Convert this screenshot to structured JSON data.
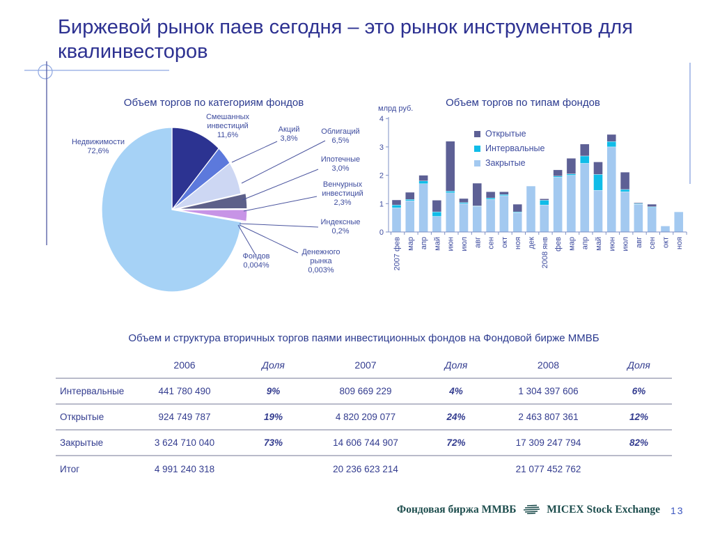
{
  "slide": {
    "title": "Биржевой рынок паев сегодня – это рынок инструментов для квалинвесторов",
    "page_number": "13",
    "footer": {
      "brand_ru": "Фондовая биржа ММВБ",
      "brand_en": "MICEX Stock Exchange"
    }
  },
  "chart_data": [
    {
      "type": "pie",
      "title": "Объем торгов по категориям фондов",
      "legend_position": "callout-labels",
      "slices": [
        {
          "label": "Смешанных инвестиций",
          "pct_label": "11,6%",
          "value": 11.6,
          "color": "#2c3391",
          "display": "Смешанных\nинвестиций\n11,6%"
        },
        {
          "label": "Акций",
          "pct_label": "3,8%",
          "value": 3.8,
          "color": "#5c79dc",
          "display": "Акций\n3,8%"
        },
        {
          "label": "Облигаций",
          "pct_label": "6,5%",
          "value": 6.5,
          "color": "#cdd7f3",
          "display": "Облигаций\n6,5%"
        },
        {
          "label": "Ипотечные",
          "pct_label": "3,0%",
          "value": 3.0,
          "color": "#5d6089",
          "explode": true,
          "display": "Ипотечные\n3,0%"
        },
        {
          "label": "Венчурных инвестиций",
          "pct_label": "2,3%",
          "value": 2.3,
          "color": "#c794e6",
          "explode": true,
          "display": "Венчурных\nинвестиций\n2,3%"
        },
        {
          "label": "Индексные",
          "pct_label": "0,2%",
          "value": 0.2,
          "color": "#e38ad8",
          "explode": true,
          "display": "Индексные\n0,2%"
        },
        {
          "label": "Фондов",
          "pct_label": "0,004%",
          "value": 0.004,
          "color": "#eef1fa",
          "display": "Фондов\n0,004%"
        },
        {
          "label": "Денежного рынка",
          "pct_label": "0,003%",
          "value": 0.003,
          "color": "#eef1fa",
          "display": "Денежного\nрынка\n0,003%"
        },
        {
          "label": "Недвижимости",
          "pct_label": "72,6%",
          "value": 72.6,
          "color": "#a6d2f6",
          "display": "Недвижимости\n72,6%"
        }
      ]
    },
    {
      "type": "bar",
      "stacked": true,
      "title": "Объем торгов по типам фондов",
      "ylabel": "млрд руб.",
      "ylim": [
        0,
        4
      ],
      "yticks": [
        0,
        1,
        2,
        3,
        4
      ],
      "grid": false,
      "legend_position": "top-inside",
      "categories": [
        "2007 фев",
        "мар",
        "апр",
        "май",
        "июн",
        "июл",
        "авг",
        "сен",
        "окт",
        "ноя",
        "дек",
        "2008 янв",
        "фев",
        "мар",
        "апр",
        "май",
        "июн",
        "июл",
        "авг",
        "сен",
        "окт",
        "ноя"
      ],
      "series": [
        {
          "name": "Закрытые",
          "color": "#a3c9f0",
          "values": [
            0.85,
            1.1,
            1.7,
            0.55,
            1.38,
            1.0,
            0.9,
            1.15,
            1.28,
            0.68,
            1.62,
            0.95,
            1.93,
            2.0,
            2.42,
            1.47,
            3.0,
            1.42,
            0.98,
            0.87,
            0.21,
            0.71
          ]
        },
        {
          "name": "Интервальные",
          "color": "#10bce8",
          "values": [
            0.1,
            0.05,
            0.1,
            0.16,
            0.06,
            0.04,
            0.02,
            0.05,
            0.04,
            0.03,
            0,
            0.17,
            0.04,
            0.05,
            0.26,
            0.56,
            0.19,
            0.08,
            0.02,
            0.02,
            0,
            0
          ]
        },
        {
          "name": "Открытые",
          "color": "#5d6095",
          "values": [
            0.18,
            0.25,
            0.2,
            0.41,
            1.76,
            0.14,
            0.8,
            0.22,
            0.1,
            0.27,
            0,
            0.05,
            0.22,
            0.55,
            0.42,
            0.44,
            0.25,
            0.61,
            0.03,
            0.09,
            0,
            0
          ]
        }
      ]
    }
  ],
  "table": {
    "title": "Объем и структура вторичных торгов паями инвестиционных фондов на Фондовой бирже ММВБ",
    "columns": [
      "",
      "2006",
      "Доля",
      "2007",
      "Доля",
      "2008",
      "Доля"
    ],
    "rows": [
      [
        "Интервальные",
        "441 780 490",
        "9%",
        "809 669 229",
        "4%",
        "1 304 397 606",
        "6%"
      ],
      [
        "Открытые",
        "924 749 787",
        "19%",
        "4 820 209 077",
        "24%",
        "2 463 807 361",
        "12%"
      ],
      [
        "Закрытые",
        "3 624 710 040",
        "73%",
        "14 606 744 907",
        "72%",
        "17 309 247 794",
        "82%"
      ],
      [
        "Итог",
        "4 991 240 318",
        "",
        "20 236 623 214",
        "",
        "21 077 452 762",
        ""
      ]
    ]
  }
}
